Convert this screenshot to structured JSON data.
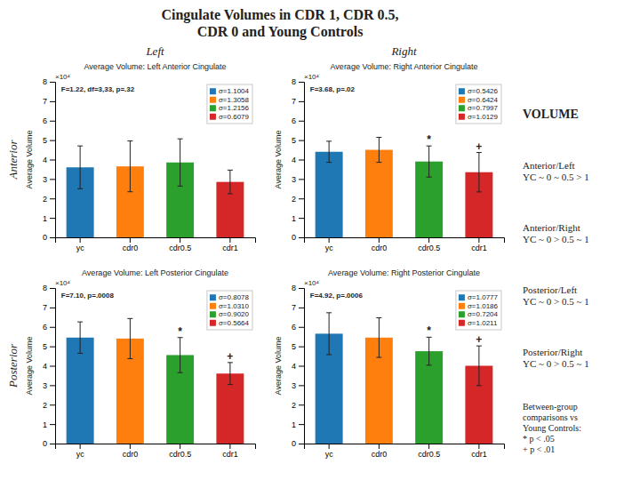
{
  "title": "Cingulate Volumes in CDR 1, CDR 0.5,\nCDR 0 and Young Controls",
  "annotations": [
    "Left",
    "Right",
    "Anterior",
    "Posterior",
    "VOLUME",
    "Anterior/Left\nYC ~ 0 ~ 0.5 > 1",
    "Anterior/Right\nYC ~ 0 > 0.5 ~ 1",
    "Posterior/Left\nYC ~ 0 > 0.5 ~ 1",
    "Posterior/Right\nYC ~ 0 > 0.5 ~ 1",
    "Between-group\ncomparisons vs\nYoung Controls:\n* p < .05\n+ p < .01"
  ],
  "chart_data": [
    {
      "type": "bar",
      "title": "Average Volume: Left Anterior Cingulate",
      "ylabel": "Average Volume",
      "categories": [
        "yc",
        "cdr0",
        "cdr0.5",
        "cdr1"
      ],
      "values": [
        3.6,
        3.65,
        3.85,
        2.85
      ],
      "errors": [
        1.1004,
        1.3058,
        1.2156,
        0.6079
      ],
      "legend_labels": [
        "σ=1.1004",
        "σ=1.3058",
        "σ=1.2156",
        "σ=0.6079"
      ],
      "legend": "upper right",
      "ylim": [
        0,
        8
      ],
      "yticks": [
        0,
        1,
        2,
        3,
        4,
        5,
        6,
        7,
        8
      ],
      "grid": false,
      "annotations": [
        {
          "text": "×10⁴"
        },
        {
          "text": "F=1.22, df=3,33, p=.32"
        }
      ]
    },
    {
      "type": "bar",
      "title": "Average Volume: Right Anterior Cingulate",
      "ylabel": "Average Volume",
      "categories": [
        "yc",
        "cdr0",
        "cdr0.5",
        "cdr1"
      ],
      "values": [
        4.4,
        4.5,
        3.9,
        3.35
      ],
      "errors": [
        0.5426,
        0.6424,
        0.7997,
        1.0129
      ],
      "legend_labels": [
        "σ=0.5426",
        "σ=0.6424",
        "σ=0.7997",
        "σ=1.0129"
      ],
      "legend": "upper right",
      "ylim": [
        0,
        8
      ],
      "yticks": [
        0,
        1,
        2,
        3,
        4,
        5,
        6,
        7,
        8
      ],
      "grid": false,
      "annotations": [
        {
          "text": "×10⁴"
        },
        {
          "text": "F=3.68, p=.02"
        },
        {
          "text": "*",
          "x": "cdr0.5"
        },
        {
          "text": "+",
          "x": "cdr1"
        }
      ]
    },
    {
      "type": "bar",
      "title": "Average Volume: Left Posterior Cingulate",
      "ylabel": "Average Volume",
      "categories": [
        "yc",
        "cdr0",
        "cdr0.5",
        "cdr1"
      ],
      "values": [
        5.45,
        5.4,
        4.55,
        3.6
      ],
      "errors": [
        0.8078,
        1.031,
        0.902,
        0.5664
      ],
      "legend_labels": [
        "σ=0.8078",
        "σ=1.0310",
        "σ=0.9020",
        "σ=0.5664"
      ],
      "legend": "upper right",
      "ylim": [
        0,
        8
      ],
      "yticks": [
        0,
        1,
        2,
        3,
        4,
        5,
        6,
        7,
        8
      ],
      "grid": false,
      "annotations": [
        {
          "text": "×10⁴"
        },
        {
          "text": "F=7.10, p=.0008"
        },
        {
          "text": "*",
          "x": "cdr0.5"
        },
        {
          "text": "+",
          "x": "cdr1"
        }
      ]
    },
    {
      "type": "bar",
      "title": "Average Volume: Right Posterior Cingulate",
      "ylabel": "Average Volume",
      "categories": [
        "yc",
        "cdr0",
        "cdr0.5",
        "cdr1"
      ],
      "values": [
        5.65,
        5.45,
        4.75,
        4.0
      ],
      "errors": [
        1.0777,
        1.0186,
        0.7204,
        1.0211
      ],
      "legend_labels": [
        "σ=1.0777",
        "σ=1.0186",
        "σ=0.7204",
        "σ=1.0211"
      ],
      "legend": "upper right",
      "ylim": [
        0,
        8
      ],
      "yticks": [
        0,
        1,
        2,
        3,
        4,
        5,
        6,
        7,
        8
      ],
      "grid": false,
      "annotations": [
        {
          "text": "×10⁴"
        },
        {
          "text": "F=4.92, p=.0006"
        },
        {
          "text": "*",
          "x": "cdr0.5"
        },
        {
          "text": "+",
          "x": "cdr1"
        }
      ]
    }
  ]
}
